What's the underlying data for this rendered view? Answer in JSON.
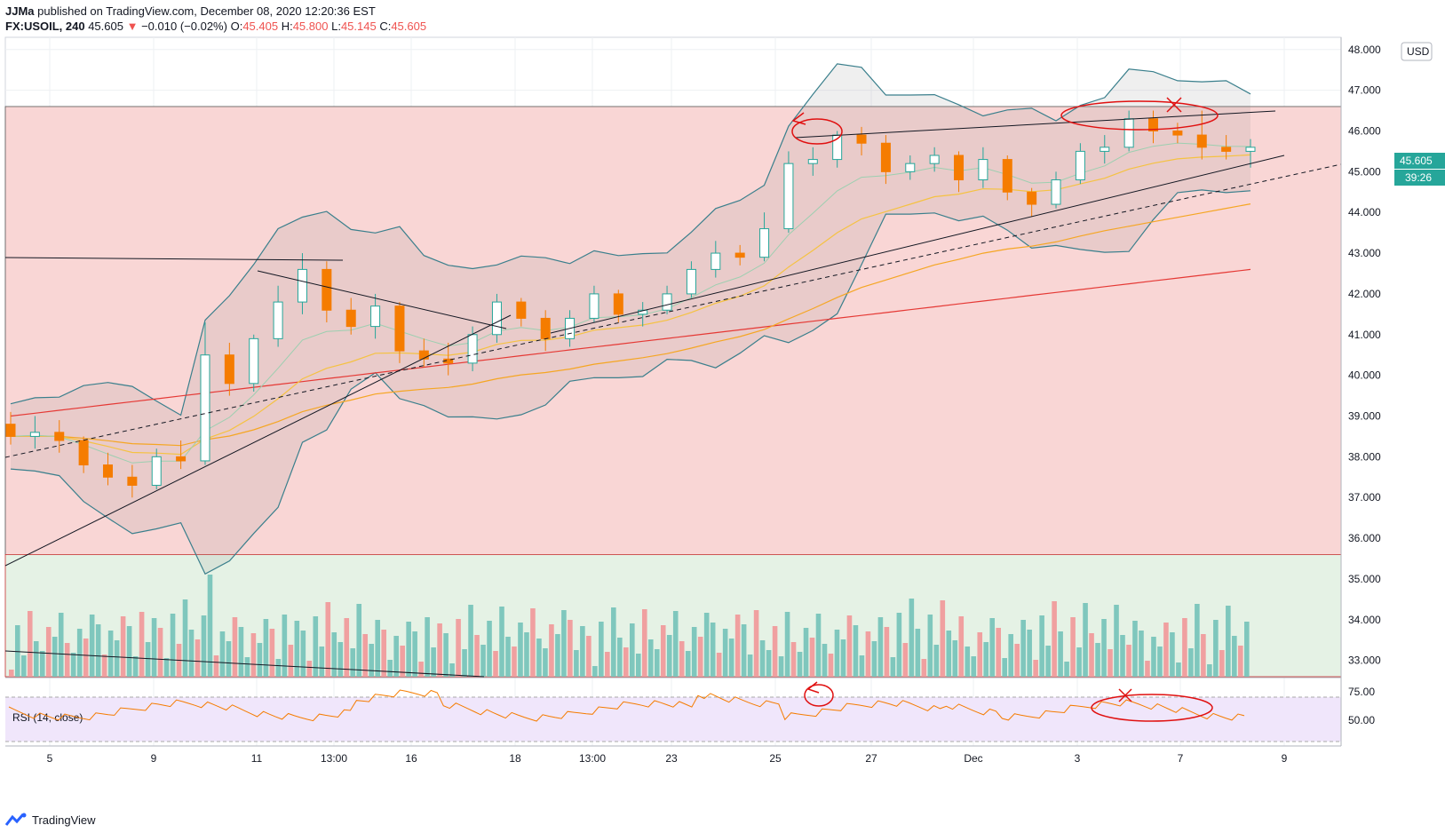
{
  "header": {
    "author": "JJMa",
    "published": "published on TradingView.com, December 08, 2020 12:20:36 EST",
    "symbol": "FX:USOIL, 240",
    "last": "45.605",
    "change_arrow": "▼",
    "change": "−0.010 (−0.02%)",
    "o_label": "O:",
    "o": "45.405",
    "h_label": "H:",
    "h": "45.800",
    "l_label": "L:",
    "l": "45.145",
    "c_label": "C:",
    "c": "45.605"
  },
  "price_axis": {
    "currency": "USD",
    "current_price": "45.605",
    "countdown": "39:26"
  },
  "rsi": {
    "label": "RSI (14, close)",
    "levels": [
      "75.00",
      "50.00"
    ]
  },
  "footer": {
    "brand": "TradingView"
  },
  "colors": {
    "up": "#26a69a",
    "down": "#f57c00",
    "vol_up": "#7fc7bd",
    "vol_down": "#f0a0a0",
    "resistance_zone": "#f9d6d5",
    "support_zone": "#e5f2e5",
    "rsi_line": "#f57c00",
    "annotation": "#e01010",
    "bb": "#3a7f8c",
    "ema_slow": "#e53935",
    "ema_mid": "#f5a623",
    "ema_fast": "#f5c242"
  },
  "chart_data": {
    "type": "candlestick",
    "title": "FX:USOIL, 240",
    "ylabel": "USD",
    "ylim": [
      32.6,
      48.3
    ],
    "yticks": [
      "33.000",
      "34.000",
      "35.000",
      "36.000",
      "37.000",
      "38.000",
      "39.000",
      "40.000",
      "41.000",
      "42.000",
      "43.000",
      "44.000",
      "45.000",
      "46.000",
      "47.000",
      "48.000"
    ],
    "xticks": [
      "5",
      "9",
      "11",
      "13:00",
      "16",
      "18",
      "13:00",
      "23",
      "25",
      "27",
      "Dec",
      "3",
      "7",
      "9"
    ],
    "current_price": 45.605,
    "ohlc_sampled": [
      [
        38.8,
        39.1,
        38.3,
        38.5
      ],
      [
        38.5,
        39.0,
        38.2,
        38.6
      ],
      [
        38.6,
        38.9,
        38.1,
        38.4
      ],
      [
        38.4,
        38.5,
        37.6,
        37.8
      ],
      [
        37.8,
        38.1,
        37.3,
        37.5
      ],
      [
        37.5,
        37.8,
        37.0,
        37.3
      ],
      [
        37.3,
        38.2,
        37.2,
        38.0
      ],
      [
        38.0,
        38.4,
        37.7,
        37.9
      ],
      [
        37.9,
        41.3,
        37.8,
        40.5
      ],
      [
        40.5,
        40.8,
        39.5,
        39.8
      ],
      [
        39.8,
        41.0,
        39.6,
        40.9
      ],
      [
        40.9,
        42.2,
        40.7,
        41.8
      ],
      [
        41.8,
        43.0,
        41.5,
        42.6
      ],
      [
        42.6,
        42.8,
        41.3,
        41.6
      ],
      [
        41.6,
        41.9,
        41.0,
        41.2
      ],
      [
        41.2,
        42.0,
        40.9,
        41.7
      ],
      [
        41.7,
        41.8,
        40.3,
        40.6
      ],
      [
        40.6,
        40.9,
        40.2,
        40.4
      ],
      [
        40.4,
        40.8,
        40.0,
        40.3
      ],
      [
        40.3,
        41.2,
        40.1,
        41.0
      ],
      [
        41.0,
        42.0,
        40.8,
        41.8
      ],
      [
        41.8,
        41.9,
        41.2,
        41.4
      ],
      [
        41.4,
        41.6,
        40.6,
        40.9
      ],
      [
        40.9,
        41.6,
        40.7,
        41.4
      ],
      [
        41.4,
        42.2,
        41.3,
        42.0
      ],
      [
        42.0,
        42.1,
        41.3,
        41.5
      ],
      [
        41.5,
        41.8,
        41.2,
        41.6
      ],
      [
        41.6,
        42.2,
        41.5,
        42.0
      ],
      [
        42.0,
        42.8,
        41.9,
        42.6
      ],
      [
        42.6,
        43.3,
        42.4,
        43.0
      ],
      [
        43.0,
        43.2,
        42.7,
        42.9
      ],
      [
        42.9,
        44.0,
        42.8,
        43.6
      ],
      [
        43.6,
        45.5,
        43.5,
        45.2
      ],
      [
        45.2,
        45.6,
        44.9,
        45.3
      ],
      [
        45.3,
        46.0,
        45.1,
        45.9
      ],
      [
        45.9,
        46.1,
        45.4,
        45.7
      ],
      [
        45.7,
        45.9,
        44.7,
        45.0
      ],
      [
        45.0,
        45.4,
        44.8,
        45.2
      ],
      [
        45.2,
        45.6,
        45.0,
        45.4
      ],
      [
        45.4,
        45.5,
        44.5,
        44.8
      ],
      [
        44.8,
        45.6,
        44.6,
        45.3
      ],
      [
        45.3,
        45.4,
        44.3,
        44.5
      ],
      [
        44.5,
        44.6,
        43.9,
        44.2
      ],
      [
        44.2,
        45.0,
        44.1,
        44.8
      ],
      [
        44.8,
        45.7,
        44.7,
        45.5
      ],
      [
        45.5,
        45.9,
        45.2,
        45.6
      ],
      [
        45.6,
        46.5,
        45.5,
        46.3
      ],
      [
        46.3,
        46.5,
        45.7,
        46.0
      ],
      [
        46.0,
        46.2,
        45.7,
        45.9
      ],
      [
        45.9,
        46.5,
        45.3,
        45.6
      ],
      [
        45.6,
        45.9,
        45.3,
        45.5
      ],
      [
        45.5,
        45.8,
        45.1,
        45.6
      ]
    ],
    "series": [
      {
        "name": "Bollinger Bands (20)",
        "type": "band"
      },
      {
        "name": "EMA 50",
        "type": "line"
      },
      {
        "name": "EMA 100",
        "type": "line"
      },
      {
        "name": "EMA 200",
        "type": "line"
      },
      {
        "name": "Volume",
        "type": "bar"
      },
      {
        "name": "RSI (14, close)",
        "type": "line"
      }
    ],
    "zones": [
      {
        "name": "resistance",
        "from": 35.6,
        "to": 46.6
      },
      {
        "name": "support",
        "from": 32.6,
        "to": 35.6
      }
    ]
  }
}
